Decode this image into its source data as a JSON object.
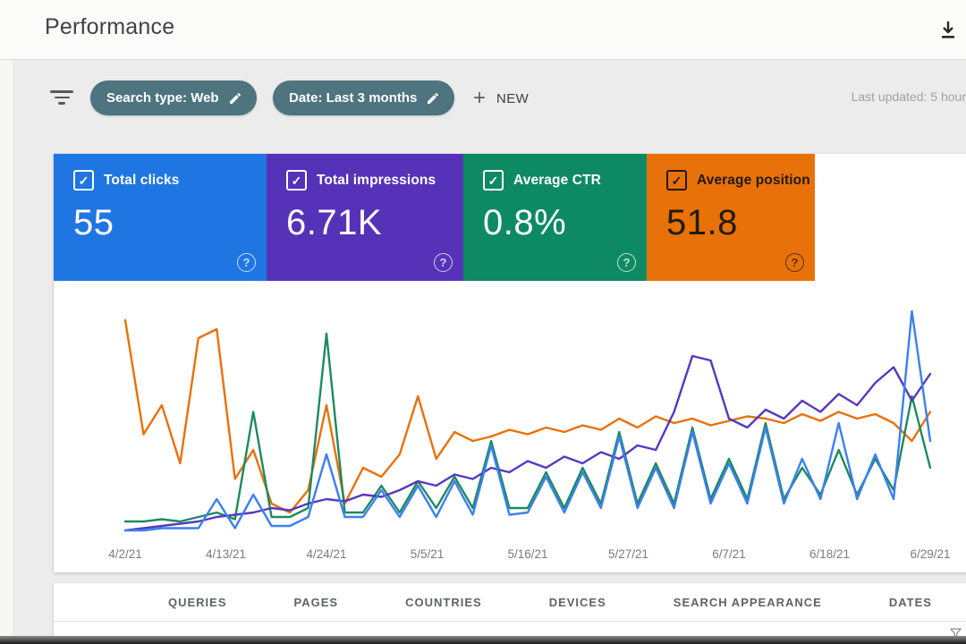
{
  "header": {
    "title": "Performance"
  },
  "filterbar": {
    "chips": [
      {
        "label": "Search type: Web"
      },
      {
        "label": "Date: Last 3 months"
      }
    ],
    "new_button": "NEW",
    "last_updated": "Last updated: 5 hour"
  },
  "cards": [
    {
      "label": "Total clicks",
      "value": "55",
      "bg": "#1f76e3",
      "fg": "#ffffff"
    },
    {
      "label": "Total impressions",
      "value": "6.71K",
      "bg": "#5632b8",
      "fg": "#ffffff"
    },
    {
      "label": "Average CTR",
      "value": "0.8%",
      "bg": "#0e8a62",
      "fg": "#ffffff"
    },
    {
      "label": "Average position",
      "value": "51.8",
      "bg": "#e8710a",
      "fg": "#221a10"
    }
  ],
  "tabs": [
    "QUERIES",
    "PAGES",
    "COUNTRIES",
    "DEVICES",
    "SEARCH APPEARANCE",
    "DATES"
  ],
  "chart_data": {
    "type": "line",
    "title": "",
    "xlabel": "",
    "ylabel": "",
    "x_tick_labels": [
      "4/2/21",
      "4/13/21",
      "4/24/21",
      "5/5/21",
      "5/16/21",
      "5/27/21",
      "6/7/21",
      "6/18/21",
      "6/29/21"
    ],
    "x_range": [
      "4/2/21",
      "6/29/21"
    ],
    "ylim": [
      0,
      100
    ],
    "units": "relative height 0-100, estimated from pixels (no y-axis shown)",
    "grid": false,
    "legend_position": "none (series colors match metric cards)",
    "series": [
      {
        "name": "Clicks",
        "color": "#3d7ff0",
        "values": [
          2,
          2,
          3,
          3,
          3,
          16,
          3,
          18,
          4,
          4,
          8,
          36,
          8,
          8,
          20,
          8,
          22,
          8,
          24,
          9,
          40,
          9,
          10,
          26,
          10,
          28,
          12,
          44,
          12,
          30,
          12,
          46,
          14,
          32,
          14,
          48,
          14,
          34,
          16,
          50,
          16,
          36,
          16,
          100,
          42
        ]
      },
      {
        "name": "Impressions",
        "color": "#5538c1",
        "values": [
          2,
          3,
          4,
          5,
          6,
          8,
          9,
          10,
          12,
          11,
          14,
          16,
          15,
          18,
          17,
          20,
          24,
          22,
          27,
          25,
          30,
          28,
          33,
          30,
          35,
          32,
          37,
          34,
          40,
          38,
          55,
          80,
          78,
          52,
          48,
          56,
          52,
          60,
          55,
          63,
          58,
          68,
          75,
          60,
          72
        ]
      },
      {
        "name": "CTR",
        "color": "#1e8a5f",
        "values": [
          6,
          6,
          7,
          6,
          8,
          10,
          7,
          55,
          8,
          8,
          12,
          90,
          10,
          10,
          22,
          10,
          24,
          12,
          26,
          12,
          42,
          12,
          12,
          28,
          12,
          30,
          14,
          46,
          14,
          32,
          14,
          48,
          16,
          34,
          16,
          50,
          16,
          30,
          18,
          38,
          18,
          34,
          20,
          62,
          30
        ]
      },
      {
        "name": "Position",
        "color": "#e8710a",
        "values": [
          96,
          45,
          58,
          32,
          88,
          92,
          25,
          38,
          14,
          10,
          20,
          58,
          14,
          30,
          26,
          36,
          62,
          34,
          46,
          42,
          44,
          47,
          45,
          48,
          46,
          49,
          47,
          52,
          48,
          53,
          50,
          52,
          49,
          51,
          53,
          52,
          50,
          54,
          51,
          55,
          52,
          54,
          50,
          42,
          55
        ]
      }
    ]
  }
}
